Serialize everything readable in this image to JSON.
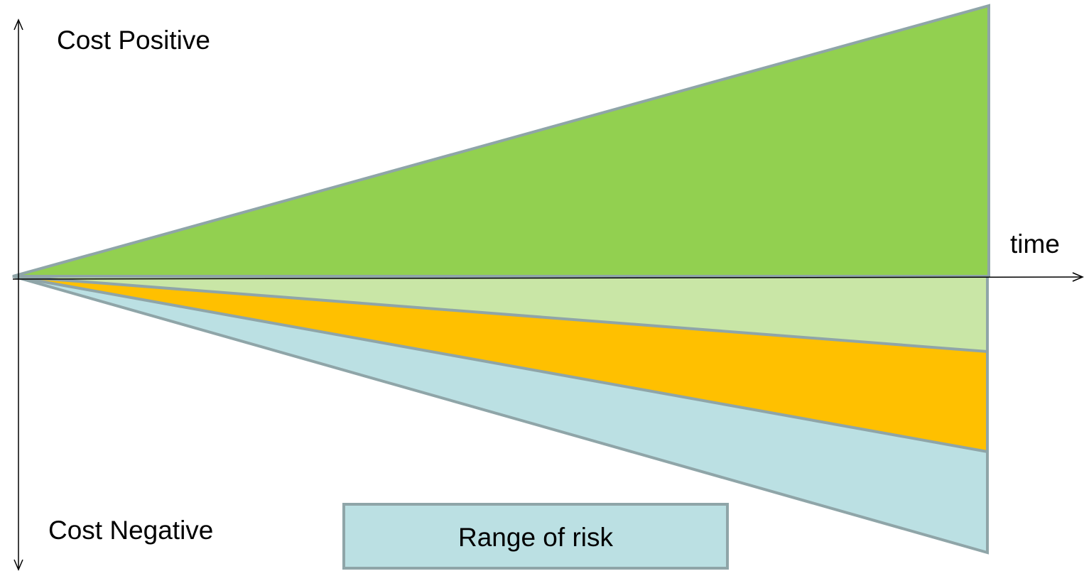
{
  "labels": {
    "y_positive": "Cost Positive",
    "y_negative": "Cost Negative",
    "x_axis": "time",
    "legend_box": "Range of risk"
  },
  "colors": {
    "green": "#92d050",
    "light_green": "#c9e6a6",
    "orange": "#ffc000",
    "light_blue": "#bbe0e3",
    "outline": "#8fa5a8",
    "axis": "#000000"
  },
  "icons": [
    "arrow-up-icon",
    "arrow-down-icon",
    "arrow-right-icon"
  ]
}
